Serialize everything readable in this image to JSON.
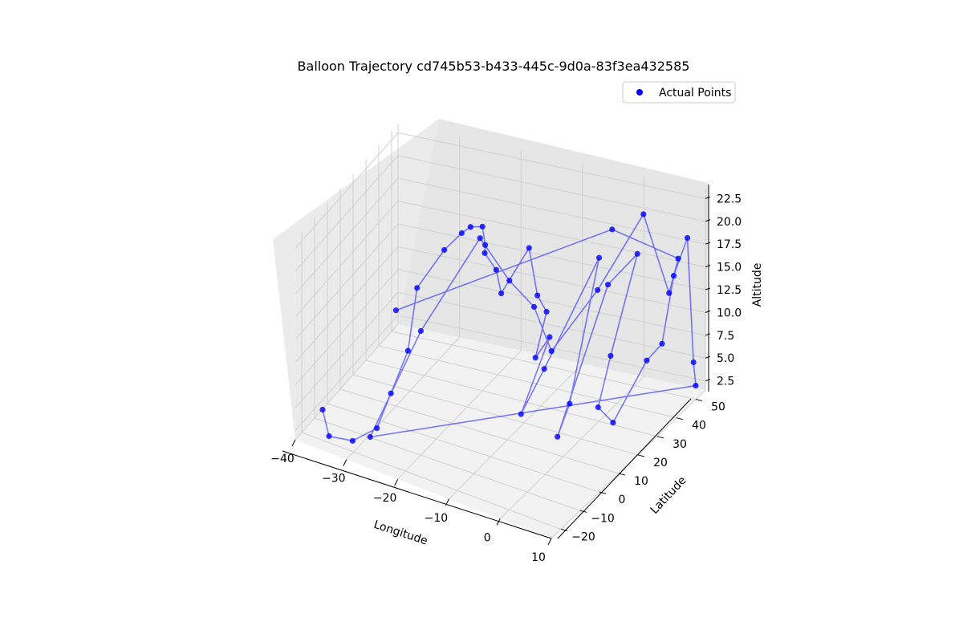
{
  "chart_data": {
    "type": "scatter",
    "title": "Balloon Trajectory cd745b53-b433-445c-9d0a-83f3ea432585",
    "xlabel": "Longitude",
    "ylabel": "Latitude",
    "zlabel": "Altitude",
    "projection": "3d",
    "xlim": [
      -40,
      10
    ],
    "ylim": [
      -25,
      55
    ],
    "zlim": [
      1.5,
      23.5
    ],
    "xticks": [
      "−40",
      "−30",
      "−20",
      "−10",
      "0",
      "10"
    ],
    "yticks": [
      "−20",
      "−10",
      "0",
      "10",
      "20",
      "30",
      "40",
      "50"
    ],
    "zticks": [
      "2.5",
      "5.0",
      "7.5",
      "10.0",
      "12.5",
      "15.0",
      "17.5",
      "20.0",
      "22.5"
    ],
    "grid": true,
    "legend": {
      "position": "upper right",
      "entries": [
        "Actual Points"
      ]
    },
    "colors": {
      "points": "#0000ff",
      "line": "#0000ff",
      "pane": "#f2f2f2",
      "grid": "#d0d0d0"
    },
    "series": [
      {
        "name": "Actual Points",
        "marker": "o",
        "connected": true,
        "points": [
          [
            -37,
            -16,
            4.0
          ],
          [
            -35,
            -19,
            2.0
          ],
          [
            -31,
            -17,
            2.0
          ],
          [
            -28,
            -11,
            3.0
          ],
          [
            -27,
            -5,
            6.0
          ],
          [
            -26,
            3,
            9.5
          ],
          [
            -27,
            13,
            14.5
          ],
          [
            -24,
            20,
            18.0
          ],
          [
            -22,
            24,
            19.5
          ],
          [
            -21,
            26,
            20.0
          ],
          [
            -20,
            30,
            19.5
          ],
          [
            -19,
            28,
            18.0
          ],
          [
            -18,
            24,
            18.0
          ],
          [
            -16,
            24,
            16.5
          ],
          [
            -14,
            20,
            15.0
          ],
          [
            -12,
            30,
            18.5
          ],
          [
            -10,
            28,
            14.0
          ],
          [
            -9,
            30,
            12.0
          ],
          [
            -8,
            20,
            9.0
          ],
          [
            -7,
            25,
            10.5
          ],
          [
            -6,
            5,
            6.0
          ],
          [
            -4,
            12,
            10.0
          ],
          [
            -3,
            40,
            17.0
          ],
          [
            -2,
            20,
            5.0
          ],
          [
            -1,
            10,
            3.5
          ],
          [
            0,
            35,
            15.5
          ],
          [
            1,
            48,
            16.5
          ],
          [
            2,
            30,
            9.0
          ],
          [
            3,
            20,
            5.5
          ],
          [
            4,
            25,
            3.0
          ],
          [
            5,
            40,
            7.0
          ],
          [
            6,
            45,
            8.0
          ],
          [
            7,
            48,
            15.0
          ],
          [
            8,
            52,
            18.5
          ],
          [
            9,
            52,
            5.0
          ],
          [
            10,
            50,
            3.0
          ],
          [
            -29,
            -12,
            2.0
          ],
          [
            -25,
            8,
            11.0
          ],
          [
            -23,
            40,
            16.0
          ],
          [
            -17,
            36,
            13.0
          ],
          [
            -15,
            44,
            9.0
          ],
          [
            -11,
            40,
            5.5
          ],
          [
            -5,
            46,
            12.0
          ],
          [
            2,
            48,
            21.0
          ],
          [
            5,
            52,
            12.0
          ],
          [
            9,
            44,
            18.0
          ],
          [
            -2,
            44,
            19.5
          ],
          [
            -30,
            10,
            12.0
          ]
        ]
      }
    ]
  }
}
